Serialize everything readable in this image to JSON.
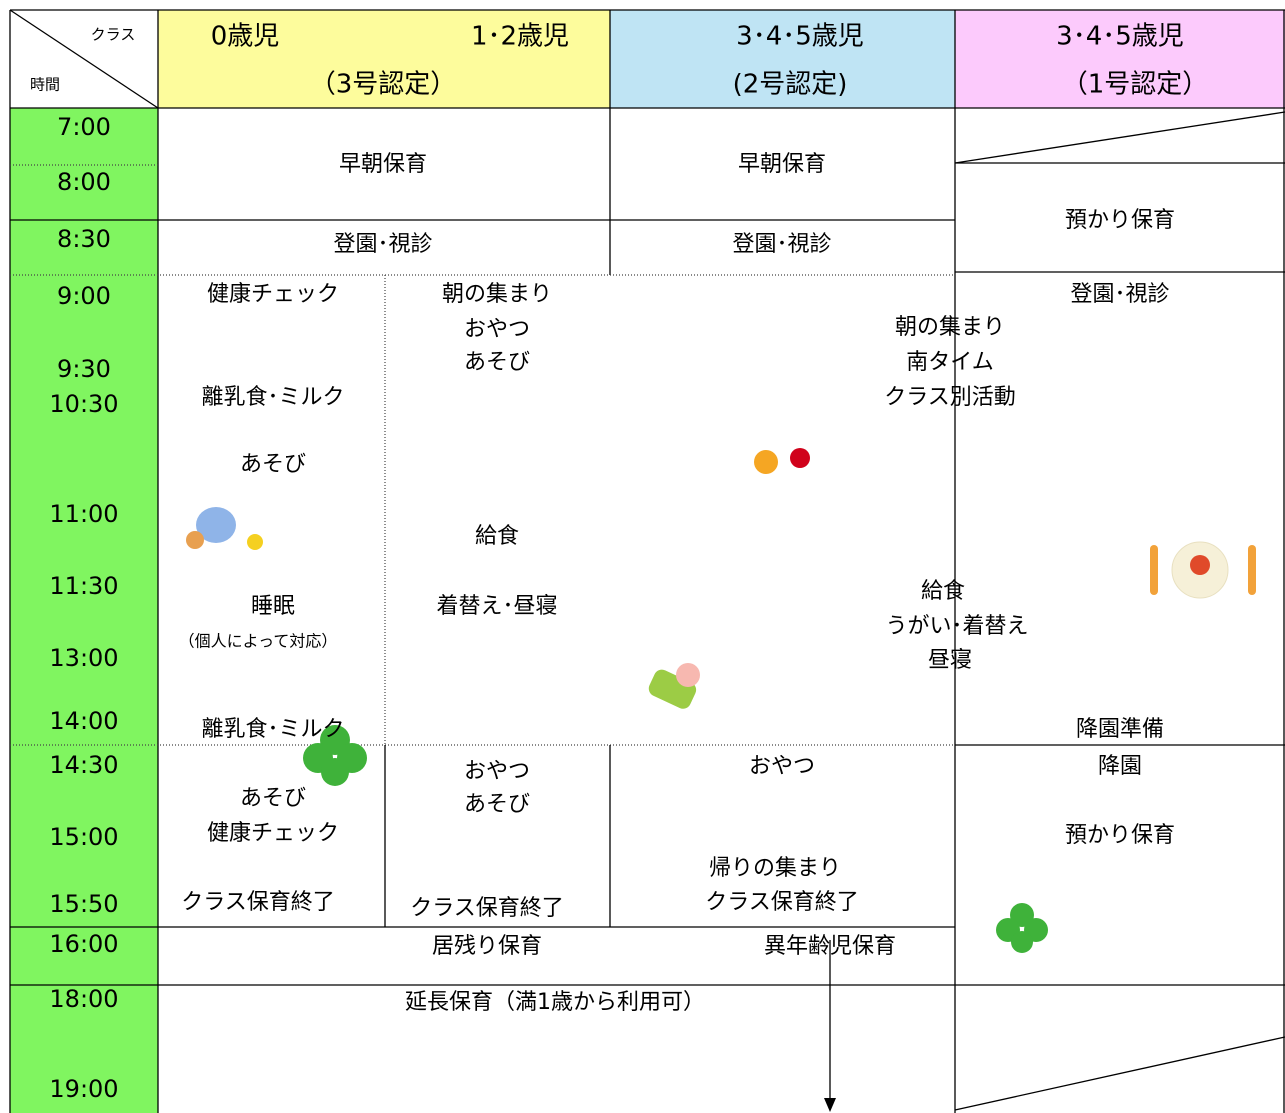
{
  "header": {
    "corner_class": "クラス",
    "corner_time": "時間",
    "col_0": "0歳児",
    "col_12": "1･2歳児",
    "group_3go": "（3号認定）",
    "col_345a": "3･4･5歳児",
    "group_2go": "(2号認定)",
    "col_345b": "3･4･5歳児",
    "group_1go": "（1号認定）"
  },
  "times": [
    "7:00",
    "8:00",
    "8:30",
    "9:00",
    "9:30",
    "10:30",
    "11:00",
    "11:30",
    "13:00",
    "14:00",
    "14:30",
    "15:00",
    "15:50",
    "16:00",
    "18:00",
    "19:00"
  ],
  "cells": [
    "早朝保育",
    "早朝保育",
    "預かり保育",
    "登園･視診",
    "登園･視診",
    "健康チェック",
    "朝の集まり",
    "おやつ",
    "あそび",
    "登園･視診",
    "朝の集まり",
    "南タイム",
    "クラス別活動",
    "離乳食･ミルク",
    "あそび",
    "給食",
    "睡眠",
    "（個人によって対応）",
    "着替え･昼寝",
    "給食",
    "うがい･着替え",
    "昼寝",
    "離乳食･ミルク",
    "降園準備",
    "おやつ",
    "降園",
    "おやつ",
    "あそび",
    "あそび",
    "健康チェック",
    "預かり保育",
    "帰りの集まり",
    "クラス保育終了",
    "クラス保育終了",
    "クラス保育終了",
    "居残り保育",
    "異年齢児保育",
    "延長保育（満1歳から利用可）"
  ]
}
